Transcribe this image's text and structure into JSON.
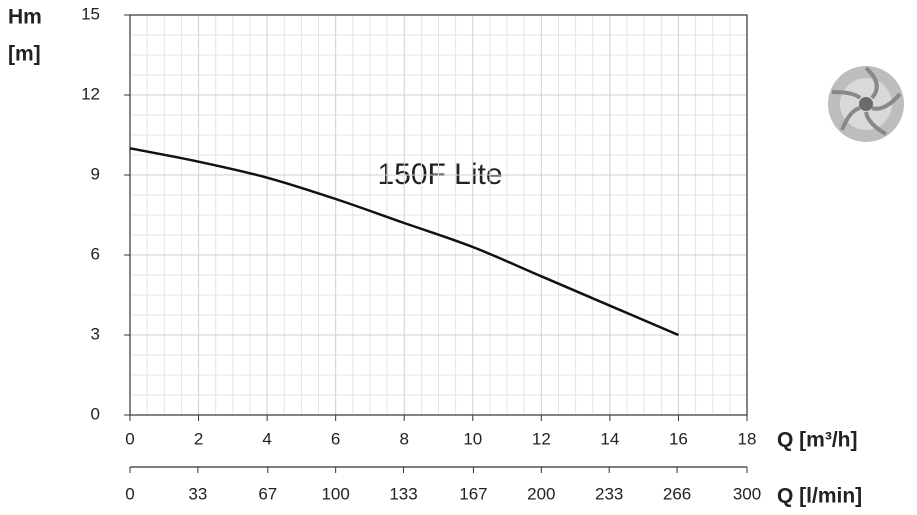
{
  "chart_data": {
    "type": "line",
    "y_label": "Hm",
    "y_unit": "[m]",
    "x_label": "Q [m³/h]",
    "x2_label": "Q [l/min]",
    "annotation": "150F Lite",
    "x": [
      0,
      2,
      4,
      6,
      8,
      10,
      12,
      14,
      16
    ],
    "values": [
      10.0,
      9.5,
      8.9,
      8.1,
      7.2,
      6.3,
      5.2,
      4.1,
      3.0
    ],
    "color": "#111111",
    "xlim": [
      0,
      18
    ],
    "xticks": [
      0,
      2,
      4,
      6,
      8,
      10,
      12,
      14,
      16,
      18
    ],
    "ylim": [
      0,
      15
    ],
    "yticks": [
      0,
      3,
      6,
      9,
      12,
      15
    ],
    "x2lim": [
      0,
      300
    ],
    "x2ticks": [
      0,
      33,
      67,
      100,
      133,
      167,
      200,
      233,
      266,
      300
    ],
    "grid": true
  }
}
